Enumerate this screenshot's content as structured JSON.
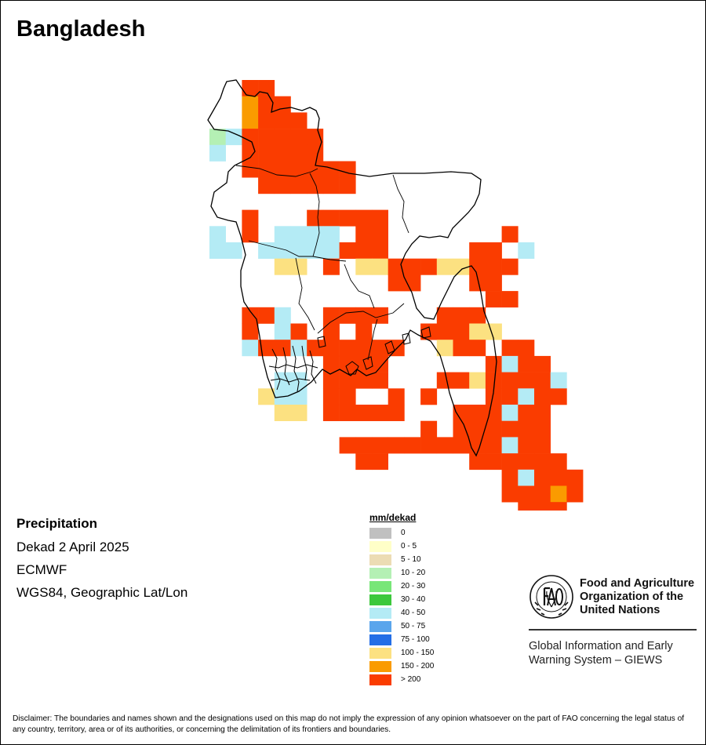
{
  "map": {
    "title": "Bangladesh",
    "info": {
      "variable": "Precipitation",
      "period": "Dekad 2 April 2025",
      "source": "ECMWF",
      "projection": "WGS84, Geographic Lat/Lon"
    },
    "legend": {
      "title": "mm/dekad",
      "classes": [
        {
          "label": "0",
          "color": "#c0c0c0"
        },
        {
          "label": "0 - 5",
          "color": "#ffffc8"
        },
        {
          "label": "5 - 10",
          "color": "#ecdcb4"
        },
        {
          "label": "10 - 20",
          "color": "#b4f0b4"
        },
        {
          "label": "20 - 30",
          "color": "#78e678"
        },
        {
          "label": "30 - 40",
          "color": "#3cc83c"
        },
        {
          "label": "40 - 50",
          "color": "#b4ebf5"
        },
        {
          "label": "50 - 75",
          "color": "#5aa5ec"
        },
        {
          "label": "75 - 100",
          "color": "#236ee6"
        },
        {
          "label": "100 - 150",
          "color": "#fce181"
        },
        {
          "label": "150 - 200",
          "color": "#fa9b00"
        },
        {
          "label": "> 200",
          "color": "#fa3c00"
        }
      ]
    },
    "grid_rows": [
      "..LL...................",
      "..KLL..................",
      "..KLLL.................",
      "DGLLLLL...MM...........",
      "GMLLLLLMMM.............",
      "..LLLLLLL..............",
      "...LLLLLL..............",
      "....MMMM.................",
      "..LMMMLLLLL...NNNNNNN..",
      "GMLMGGGGMLLNNNNNNNLNN..",
      "GGMGGGGGLLLMMMMMLLMGNN.",
      "...MJJMLMJJLLLJJLLL....",
      "...MMMMMMMMLLMMMLLN....",
      "...MMMMMMM.MMMMMMLL....",
      "..LLGMMLLLLMMMLLL......",
      "..LMGLMLMLMMMLLLJJ.....",
      "..GLLGLLLLLLMMJLLMLL...",
      "...MMMMLLLL.MMMMMLGLL..",
      "...MGGMLLLLMMMLLJLLLLG.",
      "...JGGMLL..LMLMMMLLGLL.",
      "...MJJMLLLLLMMMLLLGLL..",
      "....MMMMMMMMMLMLLLLLL..",
      "....MMMMLLLLLLLLLLGLL..",
      "......MMMLL.....LLLLLL.",
      "..................LGLLL.",
      "..................LLLKL.",
      "...................LLL..",
      "....................L..."
    ]
  }
}
